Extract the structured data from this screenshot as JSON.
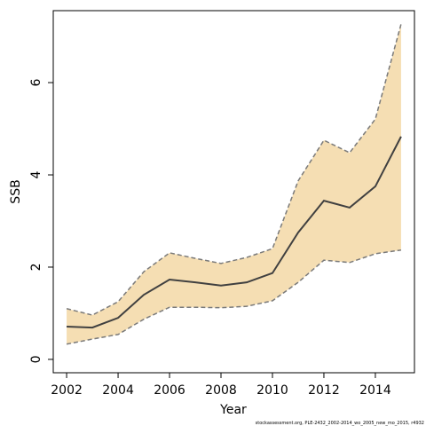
{
  "chart_data": {
    "type": "line",
    "x_label": "Year",
    "y_label": "SSB",
    "footnote": "stockassessment.org, PLE-2432_2002-2014_wo_2005_new_mo_2015, r4932",
    "x": [
      2002,
      2003,
      2004,
      2005,
      2006,
      2007,
      2008,
      2009,
      2010,
      2011,
      2012,
      2013,
      2014,
      2015
    ],
    "values": [
      0.71,
      0.69,
      0.9,
      1.4,
      1.73,
      1.67,
      1.6,
      1.67,
      1.87,
      2.75,
      3.44,
      3.29,
      3.75,
      4.83
    ],
    "upper": [
      1.1,
      0.96,
      1.25,
      1.9,
      2.31,
      2.19,
      2.08,
      2.21,
      2.4,
      3.87,
      4.75,
      4.48,
      5.21,
      7.27
    ],
    "lower": [
      0.33,
      0.44,
      0.54,
      0.87,
      1.13,
      1.13,
      1.12,
      1.15,
      1.27,
      1.67,
      2.15,
      2.1,
      2.29,
      2.37
    ],
    "color": "#404040",
    "band_color": "#f5deb3",
    "bound_color": "#7a7a7a",
    "xlim": [
      2001.48,
      2015.52
    ],
    "ylim": [
      -0.29,
      7.56
    ],
    "xticks": [
      2002,
      2004,
      2006,
      2008,
      2010,
      2012,
      2014
    ],
    "yticks": [
      0,
      2,
      4,
      6
    ],
    "grid": false
  }
}
